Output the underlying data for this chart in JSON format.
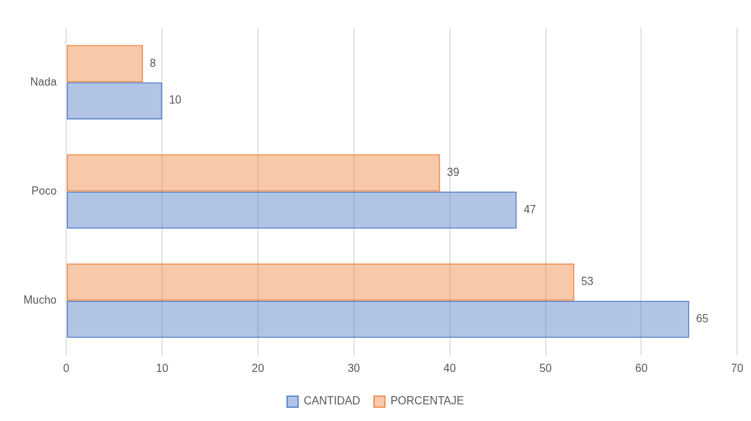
{
  "chart_data": {
    "type": "bar",
    "orientation": "horizontal",
    "categories": [
      "Nada",
      "Poco",
      "Mucho"
    ],
    "series": [
      {
        "name": "PORCENTAJE",
        "color": "#ed7d31",
        "values": [
          8,
          39,
          53
        ]
      },
      {
        "name": "CANTIDAD",
        "color": "#4472c4",
        "values": [
          10,
          47,
          65
        ]
      }
    ],
    "xlim": [
      0,
      70
    ],
    "xticks": [
      0,
      10,
      20,
      30,
      40,
      50,
      60,
      70
    ],
    "grid": "x",
    "legend": "bottom",
    "data_labels": true
  }
}
